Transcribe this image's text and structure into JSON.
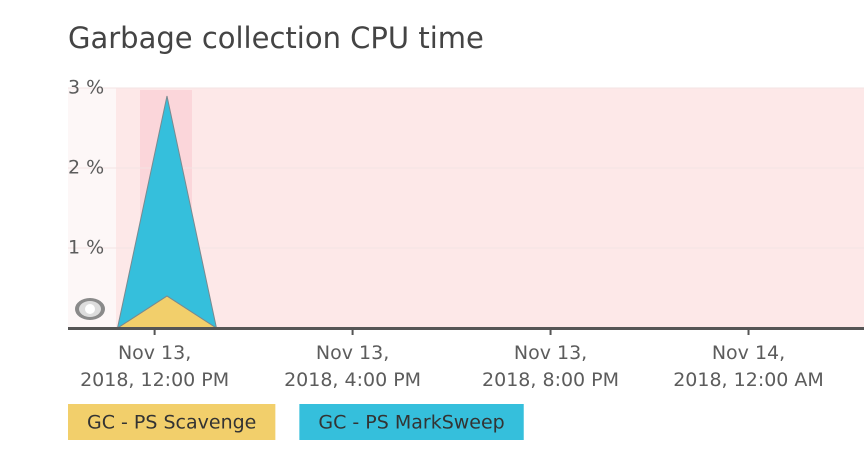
{
  "chart_data": {
    "type": "stacked-area",
    "title": "Garbage collection CPU time",
    "x": [
      "2018-11-13T11:15",
      "2018-11-13T12:15",
      "2018-11-13T13:15"
    ],
    "series": [
      {
        "name": "GC - PS Scavenge",
        "color": "#f2cf6b",
        "values": [
          0,
          0.4,
          0
        ]
      },
      {
        "name": "GC - PS MarkSweep",
        "color": "#35bfdc",
        "values": [
          0,
          2.5,
          0
        ]
      }
    ],
    "xlim": [
      "2018-11-13T10:15",
      "2018-11-14T02:20"
    ],
    "xticks": [
      {
        "value": "2018-11-13T12:00",
        "label": [
          "Nov 13,",
          "2018, 12:00 PM"
        ]
      },
      {
        "value": "2018-11-13T16:00",
        "label": [
          "Nov 13,",
          "2018, 4:00 PM"
        ]
      },
      {
        "value": "2018-11-13T20:00",
        "label": [
          "Nov 13,",
          "2018, 8:00 PM"
        ]
      },
      {
        "value": "2018-11-14T00:00",
        "label": [
          "Nov 14,",
          "2018, 12:00 AM"
        ]
      }
    ],
    "ylim": [
      0,
      3
    ],
    "yticks": [
      {
        "value": 1,
        "label": "1 %"
      },
      {
        "value": 2,
        "label": "2 %"
      },
      {
        "value": 3,
        "label": "3 %"
      }
    ],
    "grid": true
  }
}
